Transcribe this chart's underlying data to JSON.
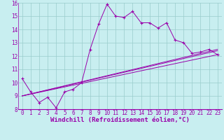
{
  "xlabel": "Windchill (Refroidissement éolien,°C)",
  "background_color": "#c8eef0",
  "line_color": "#9900aa",
  "grid_color": "#99cccc",
  "xlim": [
    -0.5,
    23.5
  ],
  "ylim": [
    8,
    16
  ],
  "xticks": [
    0,
    1,
    2,
    3,
    4,
    5,
    6,
    7,
    8,
    9,
    10,
    11,
    12,
    13,
    14,
    15,
    16,
    17,
    18,
    19,
    20,
    21,
    22,
    23
  ],
  "yticks": [
    8,
    9,
    10,
    11,
    12,
    13,
    14,
    15,
    16
  ],
  "curve1_x": [
    0,
    1,
    2,
    3,
    4,
    5,
    6,
    7,
    8,
    9,
    10,
    11,
    12,
    13,
    14,
    15,
    16,
    17,
    18,
    19,
    20,
    21,
    22,
    23
  ],
  "curve1_y": [
    10.3,
    9.3,
    8.5,
    8.9,
    8.1,
    9.3,
    9.5,
    10.0,
    12.5,
    14.4,
    15.9,
    15.0,
    14.9,
    15.35,
    14.5,
    14.5,
    14.1,
    14.5,
    13.2,
    13.0,
    12.2,
    12.3,
    12.5,
    12.1
  ],
  "curve2_x": [
    0,
    23
  ],
  "curve2_y": [
    9.0,
    12.1
  ],
  "curve3_x": [
    0,
    23
  ],
  "curve3_y": [
    9.0,
    12.4
  ],
  "curve4_x": [
    0,
    23
  ],
  "curve4_y": [
    9.0,
    12.5
  ],
  "tick_fontsize": 5.5,
  "xlabel_fontsize": 6.5
}
